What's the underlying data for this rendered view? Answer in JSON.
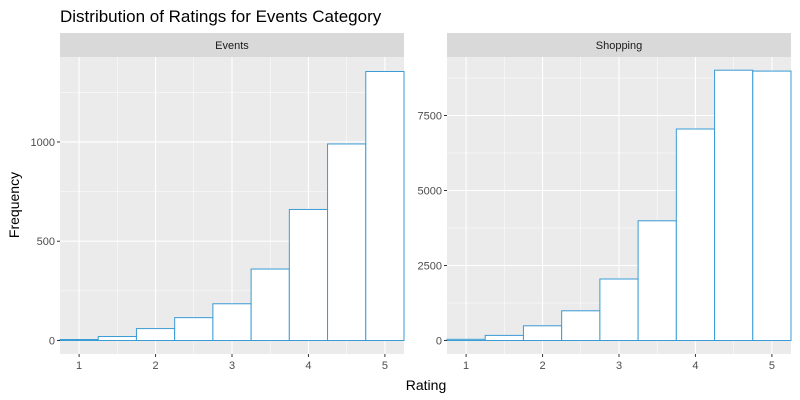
{
  "chart_data": {
    "type": "bar",
    "title": "Distribution of Ratings for Events Category",
    "xlabel": "Rating",
    "ylabel": "Frequency",
    "style": {
      "panel_bg": "#ebebeb",
      "strip_bg": "#d9d9d9",
      "grid": "#ffffff",
      "bar_fill": "#ffffff",
      "bar_stroke": "#3a9bd5"
    },
    "panels": [
      {
        "strip_label": "Events",
        "xlim": [
          0.75,
          5.25
        ],
        "ylim": [
          -68,
          1428
        ],
        "x_ticks": [
          1,
          2,
          3,
          4,
          5
        ],
        "x_tick_labels": [
          "1",
          "2",
          "3",
          "4",
          "5"
        ],
        "y_ticks": [
          0,
          500,
          1000
        ],
        "y_tick_labels": [
          "0",
          "500",
          "1000"
        ],
        "bin_width": 0.5,
        "bin_centers": [
          1.0,
          1.5,
          2.0,
          2.5,
          3.0,
          3.5,
          4.0,
          4.5,
          5.0
        ],
        "values": [
          5,
          20,
          60,
          115,
          185,
          360,
          660,
          990,
          1355
        ]
      },
      {
        "strip_label": "Shopping",
        "xlim": [
          0.75,
          5.25
        ],
        "ylim": [
          -450,
          9450
        ],
        "x_ticks": [
          1,
          2,
          3,
          4,
          5
        ],
        "x_tick_labels": [
          "1",
          "2",
          "3",
          "4",
          "5"
        ],
        "y_ticks": [
          0,
          2500,
          5000,
          7500
        ],
        "y_tick_labels": [
          "0",
          "2500",
          "5000",
          "7500"
        ],
        "bin_width": 0.5,
        "bin_centers": [
          1.0,
          1.5,
          2.0,
          2.5,
          3.0,
          3.5,
          4.0,
          4.5,
          5.0
        ],
        "values": [
          40,
          170,
          490,
          990,
          2050,
          3990,
          7050,
          9010,
          8980
        ]
      }
    ]
  }
}
